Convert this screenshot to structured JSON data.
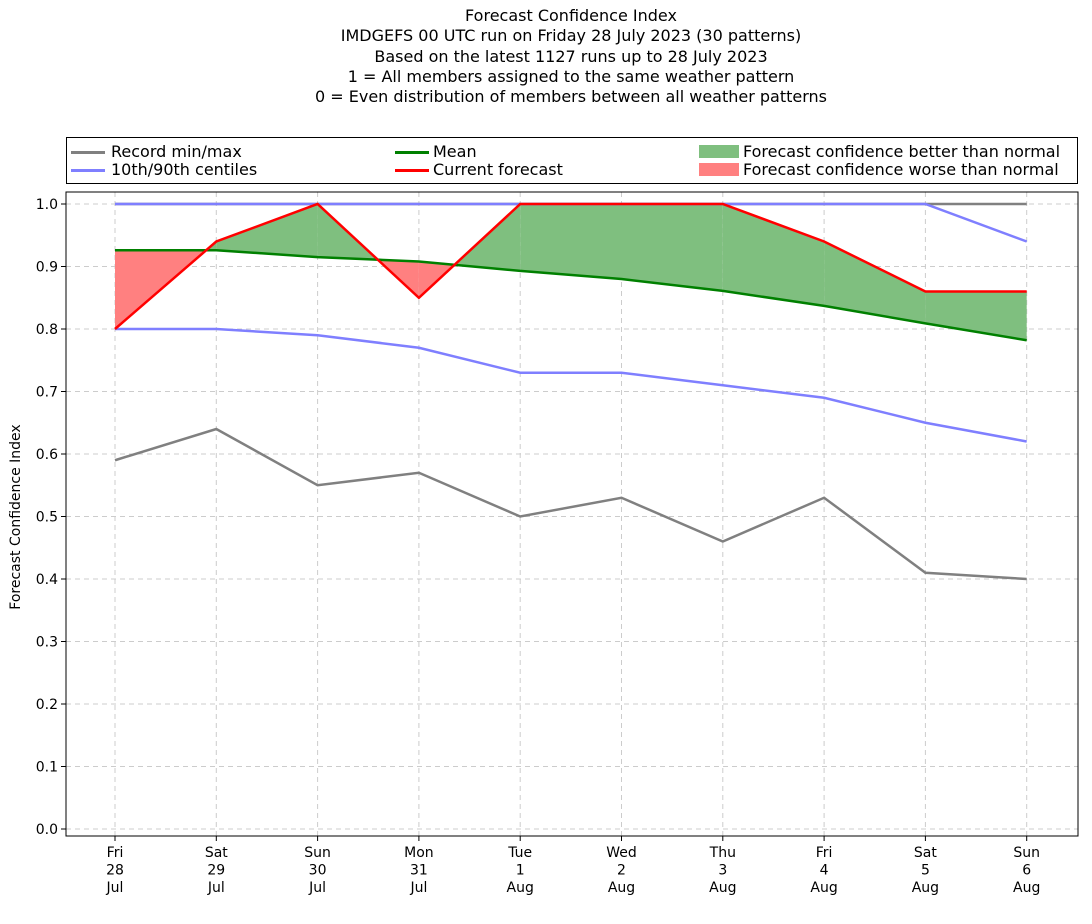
{
  "chart_data": {
    "type": "line",
    "title_lines": [
      "Forecast Confidence Index",
      "IMDGEFS 00 UTC run on Friday 28 July 2023 (30 patterns)",
      "Based on the latest 1127 runs up to 28 July 2023",
      "1 = All members assigned to the same weather pattern",
      "0 = Even distribution of members between all weather patterns"
    ],
    "ylabel": "Forecast Confidence Index",
    "xlabel": "",
    "ylim": [
      0.0,
      1.0
    ],
    "yticks": [
      "0.0",
      "0.1",
      "0.2",
      "0.3",
      "0.4",
      "0.5",
      "0.6",
      "0.7",
      "0.8",
      "0.9",
      "1.0"
    ],
    "grid": true,
    "categories": [
      [
        "Fri",
        "28",
        "Jul"
      ],
      [
        "Sat",
        "29",
        "Jul"
      ],
      [
        "Sun",
        "30",
        "Jul"
      ],
      [
        "Mon",
        "31",
        "Jul"
      ],
      [
        "Tue",
        "1",
        "Aug"
      ],
      [
        "Wed",
        "2",
        "Aug"
      ],
      [
        "Thu",
        "3",
        "Aug"
      ],
      [
        "Fri",
        "4",
        "Aug"
      ],
      [
        "Sat",
        "5",
        "Aug"
      ],
      [
        "Sun",
        "6",
        "Aug"
      ]
    ],
    "series": [
      {
        "name": "Record max",
        "color": "#808080",
        "values": [
          1.0,
          1.0,
          1.0,
          1.0,
          1.0,
          1.0,
          1.0,
          1.0,
          1.0,
          1.0
        ]
      },
      {
        "name": "Record min",
        "color": "#808080",
        "values": [
          0.59,
          0.64,
          0.55,
          0.57,
          0.5,
          0.53,
          0.46,
          0.53,
          0.41,
          0.4
        ]
      },
      {
        "name": "90th centile",
        "color": "#7f7fff",
        "values": [
          1.0,
          1.0,
          1.0,
          1.0,
          1.0,
          1.0,
          1.0,
          1.0,
          1.0,
          0.94
        ]
      },
      {
        "name": "10th centile",
        "color": "#7f7fff",
        "values": [
          0.8,
          0.8,
          0.79,
          0.77,
          0.73,
          0.73,
          0.71,
          0.69,
          0.65,
          0.62
        ]
      },
      {
        "name": "Mean",
        "color": "#008000",
        "values": [
          0.926,
          0.926,
          0.915,
          0.908,
          0.893,
          0.88,
          0.861,
          0.837,
          0.809,
          0.782
        ]
      },
      {
        "name": "Current forecast",
        "color": "#ff0000",
        "values": [
          0.8,
          0.94,
          1.0,
          0.85,
          1.0,
          1.0,
          1.0,
          0.94,
          0.86,
          0.86
        ]
      }
    ],
    "fill_colors": {
      "better": "#7fbf7f",
      "worse": "#ff8080"
    },
    "legend": {
      "placement": "top",
      "entries": [
        {
          "label": "Record min/max",
          "kind": "line",
          "color": "#808080"
        },
        {
          "label": "10th/90th centiles",
          "kind": "line",
          "color": "#7f7fff"
        },
        {
          "label": "Mean",
          "kind": "line",
          "color": "#008000"
        },
        {
          "label": "Current forecast",
          "kind": "line",
          "color": "#ff0000"
        },
        {
          "label": "Forecast confidence better than normal",
          "kind": "patch",
          "color": "#7fbf7f"
        },
        {
          "label": "Forecast confidence worse than normal",
          "kind": "patch",
          "color": "#ff8080"
        }
      ]
    }
  }
}
